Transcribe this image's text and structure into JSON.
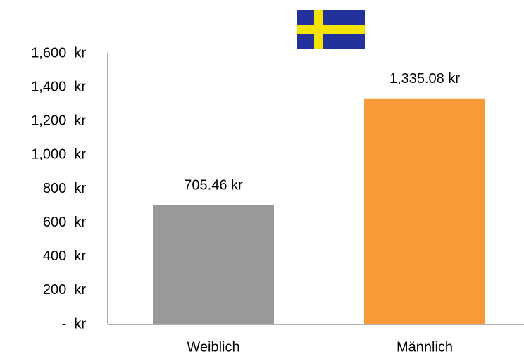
{
  "chart_data": {
    "type": "bar",
    "categories": [
      "Weiblich",
      "Männlich"
    ],
    "values": [
      705.46,
      1335.08
    ],
    "value_labels": [
      "705.46 kr",
      "1,335.08 kr"
    ],
    "colors": [
      "#999999",
      "#f99a38"
    ],
    "ylim": [
      0,
      1600
    ],
    "yticks": [
      {
        "value": 0,
        "label": "-  kr"
      },
      {
        "value": 200,
        "label": "200  kr"
      },
      {
        "value": 400,
        "label": "400  kr"
      },
      {
        "value": 600,
        "label": "600  kr"
      },
      {
        "value": 800,
        "label": "800  kr"
      },
      {
        "value": 1000,
        "label": "1,000  kr"
      },
      {
        "value": 1200,
        "label": "1,200  kr"
      },
      {
        "value": 1400,
        "label": "1,400  kr"
      },
      {
        "value": 1600,
        "label": "1,600  kr"
      }
    ],
    "grid": false
  }
}
